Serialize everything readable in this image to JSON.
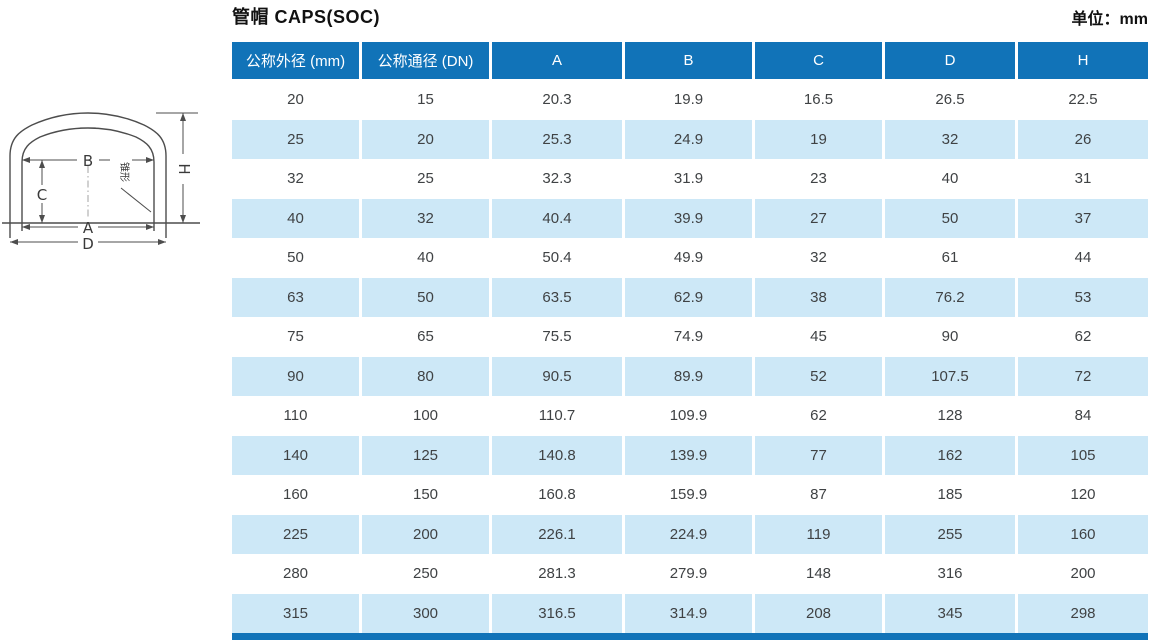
{
  "page": {
    "title": "管帽 CAPS(SOC)",
    "unit_label": "单位：mm"
  },
  "diagram": {
    "labels": {
      "a": "A",
      "b": "B",
      "c": "C",
      "d": "D",
      "h": "H",
      "taper": "锥形"
    }
  },
  "table": {
    "headers": [
      "公称外径 (mm)",
      "公称通径 (DN)",
      "A",
      "B",
      "C",
      "D",
      "H"
    ],
    "rows": [
      [
        "20",
        "15",
        "20.3",
        "19.9",
        "16.5",
        "26.5",
        "22.5"
      ],
      [
        "25",
        "20",
        "25.3",
        "24.9",
        "19",
        "32",
        "26"
      ],
      [
        "32",
        "25",
        "32.3",
        "31.9",
        "23",
        "40",
        "31"
      ],
      [
        "40",
        "32",
        "40.4",
        "39.9",
        "27",
        "50",
        "37"
      ],
      [
        "50",
        "40",
        "50.4",
        "49.9",
        "32",
        "61",
        "44"
      ],
      [
        "63",
        "50",
        "63.5",
        "62.9",
        "38",
        "76.2",
        "53"
      ],
      [
        "75",
        "65",
        "75.5",
        "74.9",
        "45",
        "90",
        "62"
      ],
      [
        "90",
        "80",
        "90.5",
        "89.9",
        "52",
        "107.5",
        "72"
      ],
      [
        "110",
        "100",
        "110.7",
        "109.9",
        "62",
        "128",
        "84"
      ],
      [
        "140",
        "125",
        "140.8",
        "139.9",
        "77",
        "162",
        "105"
      ],
      [
        "160",
        "150",
        "160.8",
        "159.9",
        "87",
        "185",
        "120"
      ],
      [
        "225",
        "200",
        "226.1",
        "224.9",
        "119",
        "255",
        "160"
      ],
      [
        "280",
        "250",
        "281.3",
        "279.9",
        "148",
        "316",
        "200"
      ],
      [
        "315",
        "300",
        "316.5",
        "314.9",
        "208",
        "345",
        "298"
      ]
    ]
  },
  "colors": {
    "header_bg": "#1173b8",
    "stripe_bg": "#cde8f7",
    "accent_bar": "#1173b8",
    "text": "#3f4244"
  }
}
